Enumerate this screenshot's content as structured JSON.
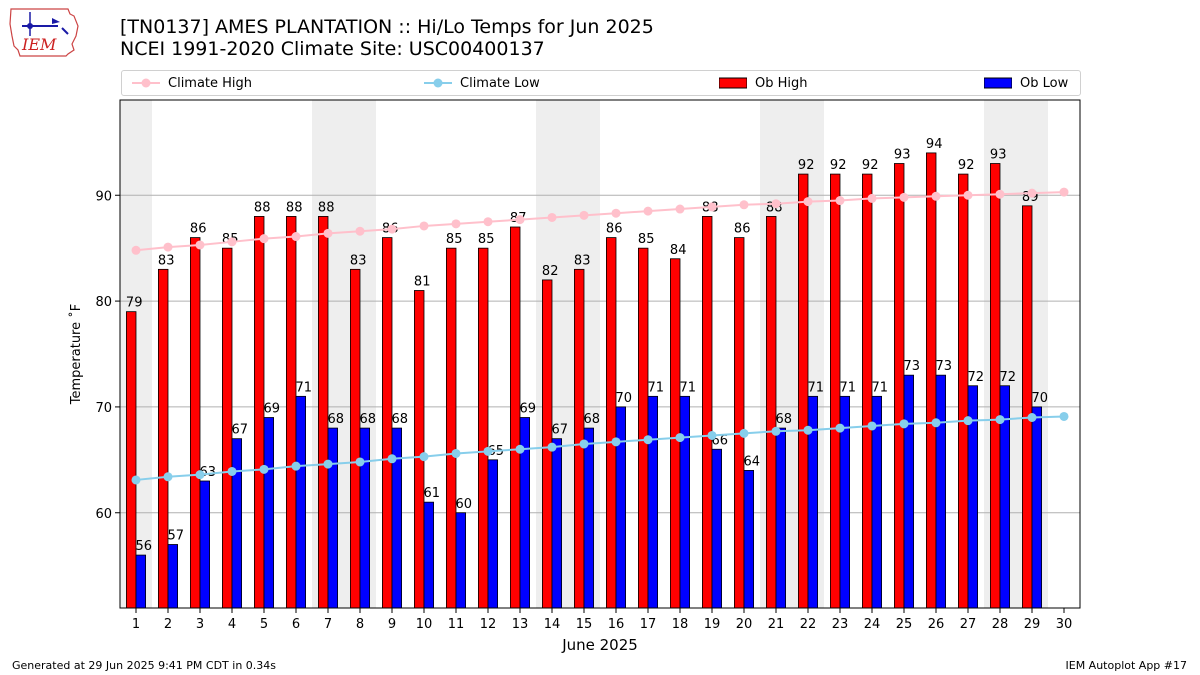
{
  "header": {
    "title_line1": "[TN0137] AMES PLANTATION :: Hi/Lo Temps for Jun 2025",
    "title_line2": "NCEI 1991-2020 Climate Site: USC00400137",
    "logo_text": "IEM"
  },
  "footer": {
    "generated": "Generated at 29 Jun 2025 9:41 PM CDT in 0.34s",
    "app": "IEM Autoplot App #17"
  },
  "colors": {
    "ob_high": "#ff0000",
    "ob_low": "#0000ff",
    "climate_high": "#ffc0cb",
    "climate_low": "#87ceeb",
    "weekend_band": "#eeeeee",
    "gridline": "#b0b0b0"
  },
  "chart_data": {
    "type": "bar",
    "xlabel": "June 2025",
    "ylabel": "Temperature ˚F",
    "xlim": [
      0.5,
      30.5
    ],
    "ylim": [
      51,
      99
    ],
    "yticks": [
      60,
      70,
      80,
      90
    ],
    "grid": "horizontal",
    "legend_placement": "top",
    "categories": [
      1,
      2,
      3,
      4,
      5,
      6,
      7,
      8,
      9,
      10,
      11,
      12,
      13,
      14,
      15,
      16,
      17,
      18,
      19,
      20,
      21,
      22,
      23,
      24,
      25,
      26,
      27,
      28,
      29,
      30
    ],
    "shaded_days": [
      1,
      7,
      8,
      14,
      15,
      21,
      22,
      28,
      29
    ],
    "series": [
      {
        "name": "Climate High",
        "kind": "line",
        "x": [
          1,
          2,
          3,
          4,
          5,
          6,
          7,
          8,
          9,
          10,
          11,
          12,
          13,
          14,
          15,
          16,
          17,
          18,
          19,
          20,
          21,
          22,
          23,
          24,
          25,
          26,
          27,
          28,
          29,
          30
        ],
        "values": [
          84.8,
          85.1,
          85.3,
          85.6,
          85.9,
          86.1,
          86.4,
          86.6,
          86.8,
          87.1,
          87.3,
          87.5,
          87.7,
          87.9,
          88.1,
          88.3,
          88.5,
          88.7,
          88.9,
          89.1,
          89.2,
          89.4,
          89.5,
          89.7,
          89.8,
          89.9,
          90.0,
          90.1,
          90.2,
          90.3
        ]
      },
      {
        "name": "Climate Low",
        "kind": "line",
        "x": [
          1,
          2,
          3,
          4,
          5,
          6,
          7,
          8,
          9,
          10,
          11,
          12,
          13,
          14,
          15,
          16,
          17,
          18,
          19,
          20,
          21,
          22,
          23,
          24,
          25,
          26,
          27,
          28,
          29,
          30
        ],
        "values": [
          63.1,
          63.4,
          63.6,
          63.9,
          64.1,
          64.4,
          64.6,
          64.8,
          65.1,
          65.3,
          65.6,
          65.8,
          66.0,
          66.2,
          66.5,
          66.7,
          66.9,
          67.1,
          67.3,
          67.5,
          67.7,
          67.8,
          68.0,
          68.2,
          68.4,
          68.5,
          68.7,
          68.8,
          69.0,
          69.1
        ]
      },
      {
        "name": "Ob High",
        "kind": "bar",
        "x": [
          1,
          2,
          3,
          4,
          5,
          6,
          7,
          8,
          9,
          10,
          11,
          12,
          13,
          14,
          15,
          16,
          17,
          18,
          19,
          20,
          21,
          22,
          23,
          24,
          25,
          26,
          27,
          28,
          29
        ],
        "values": [
          79,
          83,
          86,
          85,
          88,
          88,
          88,
          83,
          86,
          81,
          85,
          85,
          87,
          82,
          83,
          86,
          85,
          84,
          88,
          86,
          88,
          92,
          92,
          92,
          93,
          94,
          92,
          93,
          89
        ]
      },
      {
        "name": "Ob Low",
        "kind": "bar",
        "x": [
          1,
          2,
          3,
          4,
          5,
          6,
          7,
          8,
          9,
          10,
          11,
          12,
          13,
          14,
          15,
          16,
          17,
          18,
          19,
          20,
          21,
          22,
          23,
          24,
          25,
          26,
          27,
          28,
          29
        ],
        "values": [
          56,
          57,
          63,
          67,
          69,
          71,
          68,
          68,
          68,
          61,
          60,
          65,
          69,
          67,
          68,
          70,
          71,
          71,
          66,
          64,
          68,
          71,
          71,
          71,
          73,
          73,
          72,
          72,
          70
        ]
      }
    ]
  }
}
